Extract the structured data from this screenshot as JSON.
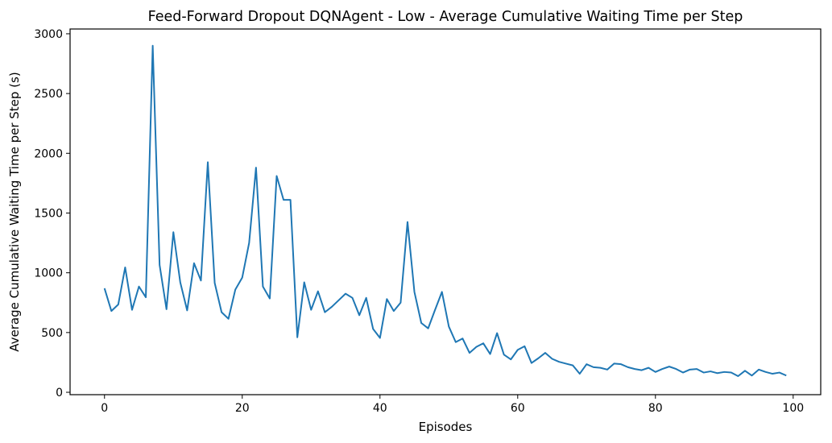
{
  "chart_data": {
    "type": "line",
    "title": "Feed-Forward Dropout DQNAgent - Low - Average Cumulative Waiting Time per Step",
    "xlabel": "Episodes",
    "ylabel": "Average Cumulative Waiting Time per Step (s)",
    "xlim": [
      -5,
      104
    ],
    "ylim": [
      -20,
      3040
    ],
    "xticks": [
      0,
      20,
      40,
      60,
      80,
      100
    ],
    "yticks": [
      0,
      500,
      1000,
      1500,
      2000,
      2500,
      3000
    ],
    "grid": false,
    "legend": "none",
    "series": [
      {
        "color": "#1f77b4",
        "x": [
          0,
          1,
          2,
          3,
          4,
          5,
          6,
          7,
          8,
          9,
          10,
          11,
          12,
          13,
          14,
          15,
          16,
          17,
          18,
          19,
          20,
          21,
          22,
          23,
          24,
          25,
          26,
          27,
          28,
          29,
          30,
          31,
          32,
          33,
          34,
          35,
          36,
          37,
          38,
          39,
          40,
          41,
          42,
          43,
          44,
          45,
          46,
          47,
          48,
          49,
          50,
          51,
          52,
          53,
          54,
          55,
          56,
          57,
          58,
          59,
          60,
          61,
          62,
          63,
          64,
          65,
          66,
          67,
          68,
          69,
          70,
          71,
          72,
          73,
          74,
          75,
          76,
          77,
          78,
          79,
          80,
          81,
          82,
          83,
          84,
          85,
          86,
          87,
          88,
          89,
          90,
          91,
          92,
          93,
          94,
          95,
          96,
          97,
          98,
          99
        ],
        "values": [
          870,
          680,
          735,
          1045,
          690,
          885,
          795,
          2900,
          1065,
          695,
          1340,
          920,
          685,
          1080,
          935,
          1925,
          915,
          670,
          615,
          860,
          960,
          1250,
          1880,
          885,
          785,
          1810,
          1610,
          1610,
          460,
          920,
          690,
          845,
          670,
          715,
          770,
          825,
          790,
          645,
          790,
          530,
          455,
          780,
          680,
          750,
          1425,
          840,
          580,
          535,
          690,
          840,
          550,
          420,
          450,
          330,
          380,
          410,
          320,
          495,
          315,
          275,
          355,
          385,
          245,
          285,
          330,
          280,
          255,
          240,
          225,
          155,
          235,
          210,
          205,
          190,
          240,
          235,
          210,
          195,
          185,
          205,
          170,
          195,
          215,
          195,
          165,
          190,
          195,
          165,
          175,
          160,
          170,
          165,
          135,
          180,
          140,
          190,
          170,
          155,
          165,
          140
        ]
      }
    ]
  }
}
